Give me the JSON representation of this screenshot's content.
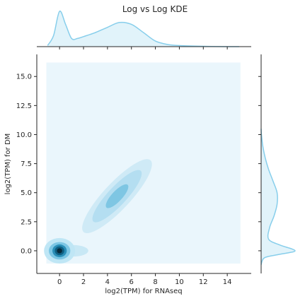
{
  "chart_data": {
    "type": "kde-joint",
    "title": "Log vs Log KDE",
    "xlabel": "log2(TPM) for RNAseq",
    "ylabel": "log2(TPM) for DM",
    "xlim": [
      -1.9,
      16.0
    ],
    "ylim": [
      -1.95,
      16.9
    ],
    "x_ticks": [
      0,
      2,
      4,
      6,
      8,
      10,
      12,
      14
    ],
    "y_ticks": [
      0.0,
      2.5,
      5.0,
      7.5,
      10.0,
      12.5,
      15.0
    ],
    "x_tick_labels": [
      "0",
      "2",
      "4",
      "6",
      "8",
      "10",
      "12",
      "14"
    ],
    "y_tick_labels": [
      "0.0",
      "2.5",
      "5.0",
      "7.5",
      "10.0",
      "12.5",
      "15.0"
    ],
    "grid": false,
    "fill_color": "#87ceeb",
    "bivariate_region": {
      "x_range": [
        -1.1,
        15.1
      ],
      "y_range": [
        -1.1,
        16.2
      ]
    },
    "bivariate_clusters": [
      {
        "center": [
          0.0,
          0.0
        ],
        "levels": [
          {
            "a": 1.3,
            "b": 1.1,
            "angle": 0,
            "color": "#bfe6f5"
          },
          {
            "a": 0.9,
            "b": 0.75,
            "angle": 0,
            "color": "#7cc6e4"
          },
          {
            "a": 0.6,
            "b": 0.55,
            "angle": 0,
            "color": "#2a8fb8"
          },
          {
            "a": 0.4,
            "b": 0.38,
            "angle": 0,
            "color": "#0f5f82"
          },
          {
            "a": 0.22,
            "b": 0.22,
            "angle": 0,
            "color": "#062a3b"
          }
        ]
      },
      {
        "center": [
          4.8,
          4.7
        ],
        "levels": [
          {
            "a": 4.1,
            "b": 1.15,
            "angle": 47,
            "color": "#cfeaf6"
          },
          {
            "a": 2.9,
            "b": 0.8,
            "angle": 47,
            "color": "#b4def1"
          },
          {
            "a": 1.3,
            "b": 0.45,
            "angle": 47,
            "color": "#7ec6e3"
          }
        ]
      }
    ],
    "marginal_x": {
      "x": [
        -1,
        -0.5,
        0,
        0.5,
        1,
        1.5,
        2,
        3,
        4,
        5,
        6,
        7,
        8,
        9,
        10,
        12,
        14,
        15
      ],
      "density": [
        0.03,
        0.3,
        0.95,
        0.6,
        0.22,
        0.22,
        0.27,
        0.38,
        0.52,
        0.65,
        0.6,
        0.38,
        0.15,
        0.06,
        0.03,
        0.01,
        0.0,
        0.0
      ]
    },
    "marginal_y": {
      "y": [
        -1.2,
        -0.6,
        -0.3,
        0,
        0.5,
        1,
        2,
        3,
        4,
        5,
        6,
        7,
        8,
        9,
        10,
        10.5
      ],
      "density": [
        0.0,
        0.1,
        0.55,
        1.0,
        0.55,
        0.22,
        0.25,
        0.38,
        0.47,
        0.47,
        0.35,
        0.22,
        0.12,
        0.05,
        0.01,
        0.0
      ]
    }
  }
}
